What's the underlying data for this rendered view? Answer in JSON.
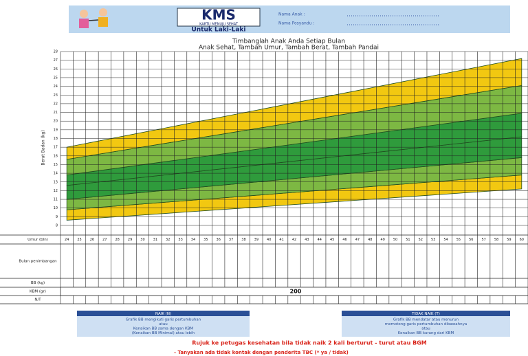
{
  "header": {
    "logo": "KMS",
    "logo_subtitle": "KARTU MENUJU SEHAT",
    "gender": "Untuk Laki-Laki",
    "fields": [
      "Nama Anak :",
      "Nama Posyandu :"
    ]
  },
  "chart_data": {
    "type": "band",
    "title": "Timbanglah Anak Anda Setiap Bulan",
    "subtitle": "Anak Sehat, Tambah Umur, Tambah Berat, Tambah Pandai",
    "y_label": "Berat Badan (kg)",
    "x": [
      24,
      60
    ],
    "xlim": [
      23.5,
      60.5
    ],
    "xticks": [
      24,
      25,
      26,
      27,
      28,
      29,
      30,
      31,
      32,
      33,
      34,
      35,
      36,
      37,
      38,
      39,
      40,
      41,
      42,
      43,
      44,
      45,
      46,
      47,
      48,
      49,
      50,
      51,
      52,
      53,
      54,
      55,
      56,
      57,
      58,
      59,
      60
    ],
    "ylim": [
      8,
      28
    ],
    "yticks": [
      8,
      9,
      10,
      11,
      12,
      13,
      14,
      15,
      16,
      17,
      18,
      19,
      20,
      21,
      22,
      23,
      24,
      25,
      26,
      27,
      28
    ],
    "grid": true,
    "bands": [
      {
        "color": "#f2c811",
        "lower": [
          8.6,
          12.2
        ],
        "upper": [
          9.8,
          13.8
        ]
      },
      {
        "color": "#7db843",
        "lower": [
          9.8,
          13.8
        ],
        "upper": [
          11.0,
          15.8
        ]
      },
      {
        "color": "#2f9b3c",
        "lower": [
          11.0,
          15.8
        ],
        "upper": [
          12.6,
          18.2
        ]
      },
      {
        "color": "#2f9b3c",
        "lower": [
          12.6,
          18.2
        ],
        "upper": [
          13.8,
          20.9
        ]
      },
      {
        "color": "#7db843",
        "lower": [
          13.8,
          20.9
        ],
        "upper": [
          15.6,
          24.1
        ]
      },
      {
        "color": "#f2c811",
        "lower": [
          15.6,
          24.1
        ],
        "upper": [
          17.0,
          27.2
        ]
      }
    ]
  },
  "table": {
    "row_labels": [
      "Umur (bln)",
      "Bulan penimbangan",
      "BB (kg)",
      "KBM (gr)",
      "N/T"
    ],
    "kbm": "200"
  },
  "legend_boxes": [
    {
      "title": "NAIK (N)",
      "lines": [
        "Grafik BB mengikuti garis pertumbuhan",
        "atau",
        "Kenaikan BB sama dengan KBM",
        "(Kenaikan BB Minimal) atau lebih"
      ]
    },
    {
      "title": "TIDAK NAIK (T)",
      "lines": [
        "Grafik BB mendatar atau menurun",
        "memotong garis pertumbuhan dibawahnya",
        "atau",
        "Kenaikan BB kurang dari KBM"
      ]
    }
  ],
  "footer": {
    "warning": "Rujuk ke petugas kesehatan bila tidak naik 2 kali berturut - turut atau BGM",
    "note": "- Tanyakan ada tidak kontak dengan penderita TBC (* ya / tidak)"
  }
}
